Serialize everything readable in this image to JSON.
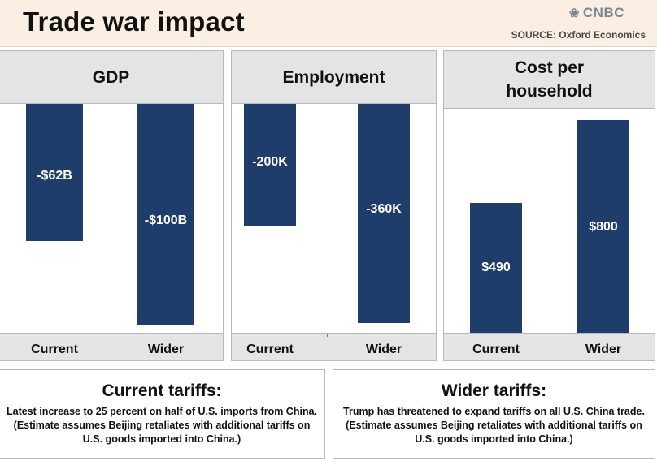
{
  "header": {
    "title": "Trade war impact",
    "logo": "CNBC",
    "source": "SOURCE: Oxford Economics"
  },
  "colors": {
    "bar": "#1f3d6b",
    "header_bg": "#fbeee2",
    "panel_head_bg": "#e4e4e6"
  },
  "chart_data": [
    {
      "type": "bar",
      "title": "GDP",
      "categories": [
        "Current",
        "Wider"
      ],
      "values": [
        -62,
        -100
      ],
      "unit": "billion USD",
      "data_labels": [
        "-$62B",
        "-$100B"
      ],
      "ylim": [
        -100,
        0
      ]
    },
    {
      "type": "bar",
      "title": "Employment",
      "categories": [
        "Current",
        "Wider"
      ],
      "values": [
        -200,
        -360
      ],
      "unit": "thousand jobs",
      "data_labels": [
        "-200K",
        "-360K"
      ],
      "ylim": [
        -360,
        0
      ]
    },
    {
      "type": "bar",
      "title": "Cost per\nhousehold",
      "categories": [
        "Current",
        "Wider"
      ],
      "values": [
        490,
        800
      ],
      "unit": "USD",
      "data_labels": [
        "$490",
        "$800"
      ],
      "ylim": [
        0,
        800
      ]
    }
  ],
  "notes": {
    "current": {
      "title": "Current tariffs:",
      "body": "Latest increase to 25 percent on half of U.S. imports from China. (Estimate assumes Beijing retaliates with additional tariffs on U.S. goods imported into China.)"
    },
    "wider": {
      "title": "Wider tariffs:",
      "body": "Trump has threatened to expand tariffs on all U.S. China trade. (Estimate assumes Beijing retaliates with additional tariffs on U.S. goods imported into China.)"
    }
  }
}
